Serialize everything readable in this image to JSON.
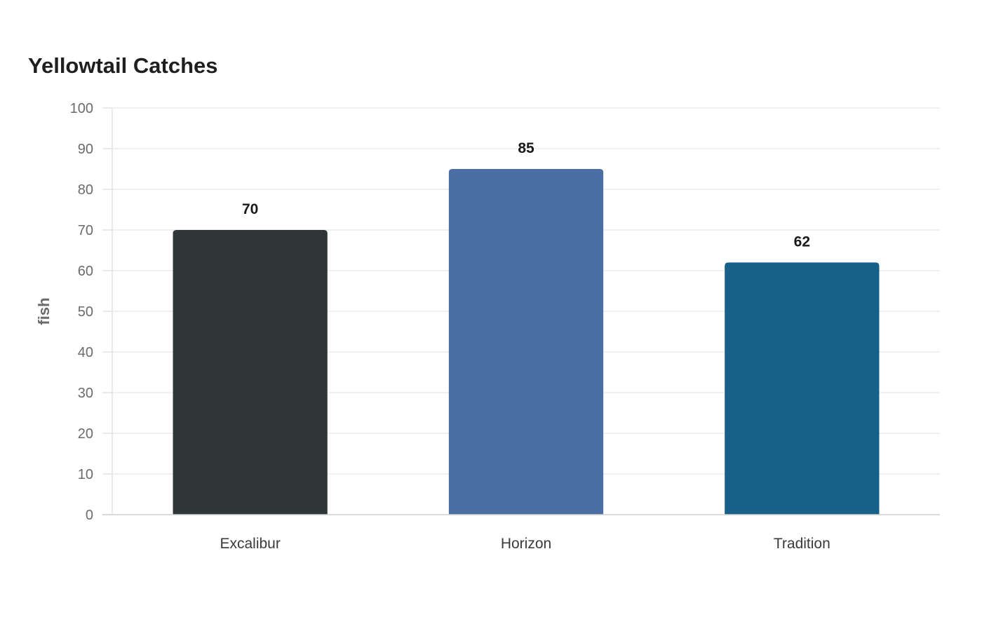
{
  "chart_data": {
    "type": "bar",
    "title": "Yellowtail Catches",
    "xlabel": "",
    "ylabel": "fish",
    "categories": [
      "Excalibur",
      "Horizon",
      "Tradition"
    ],
    "values": [
      70,
      85,
      62
    ],
    "colors": [
      "#2e3638",
      "#4b6fa5",
      "#176087"
    ],
    "ylim": [
      0,
      100
    ],
    "yticks": [
      0,
      10,
      20,
      30,
      40,
      50,
      60,
      70,
      80,
      90,
      100
    ],
    "grid": true,
    "data_labels": true
  }
}
